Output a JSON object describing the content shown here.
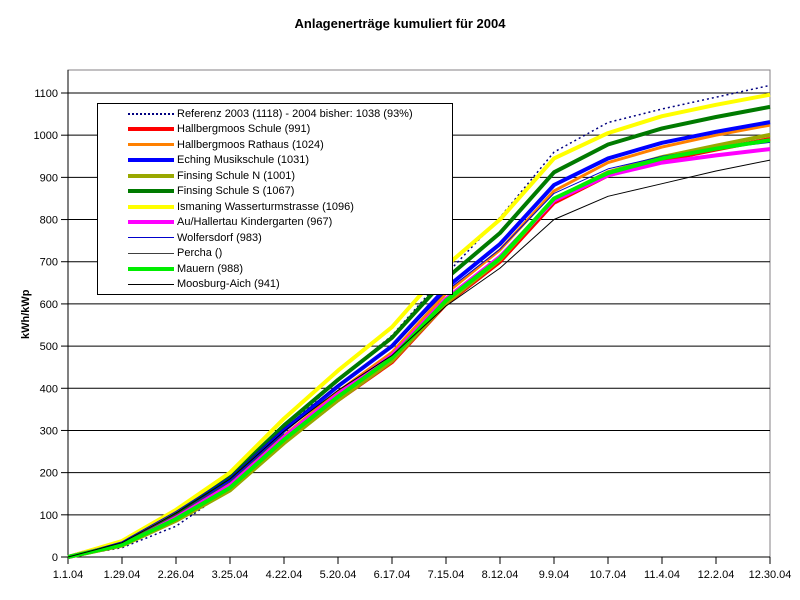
{
  "colors": {
    "background": "#FFFFFF",
    "plot_border": "#848284",
    "axis": "#000000",
    "grid": "#000000"
  },
  "chart_data": {
    "type": "line",
    "title": "Anlagenerträge kumuliert für 2004",
    "xlabel": "",
    "ylabel": "kWh/kWp",
    "ylim": [
      0,
      1150
    ],
    "ytick_step": 100,
    "yticks": [
      0,
      100,
      200,
      300,
      400,
      500,
      600,
      700,
      800,
      900,
      1000,
      1100
    ],
    "grid": "horizontal",
    "legend_position": "top-left-inside",
    "categories": [
      "1.1.04",
      "1.29.04",
      "2.26.04",
      "3.25.04",
      "4.22.04",
      "5.20.04",
      "6.17.04",
      "7.15.04",
      "8.12.04",
      "9.9.04",
      "10.7.04",
      "11.4.04",
      "12.2.04",
      "12.30.04"
    ],
    "series": [
      {
        "name": "Referenz 2003 (1118) - 2004 bisher: 1038 (93%)",
        "color": "#000080",
        "width": 1.5,
        "dash": "2 3",
        "values": [
          0,
          22,
          73,
          162,
          300,
          420,
          525,
          670,
          805,
          960,
          1030,
          1062,
          1090,
          1118
        ]
      },
      {
        "name": "Hallbergmoos Schule (991)",
        "color": "#FF0000",
        "width": 4,
        "dash": null,
        "values": [
          0,
          28,
          88,
          160,
          272,
          372,
          462,
          600,
          700,
          840,
          905,
          940,
          966,
          991
        ]
      },
      {
        "name": "Hallbergmoos Rathaus (1024)",
        "color": "#FF8000",
        "width": 3,
        "dash": null,
        "values": [
          0,
          30,
          95,
          172,
          288,
          392,
          485,
          625,
          728,
          868,
          935,
          972,
          1000,
          1024
        ]
      },
      {
        "name": "Eching Musikschule (1031)",
        "color": "#0000FF",
        "width": 4,
        "dash": null,
        "values": [
          0,
          34,
          102,
          182,
          300,
          405,
          500,
          638,
          742,
          882,
          945,
          982,
          1008,
          1031
        ]
      },
      {
        "name": "Finsing Schule N (1001)",
        "color": "#99A800",
        "width": 4,
        "dash": null,
        "values": [
          0,
          27,
          86,
          158,
          270,
          372,
          465,
          602,
          705,
          848,
          912,
          948,
          975,
          1001
        ]
      },
      {
        "name": "Finsing Schule S (1067)",
        "color": "#007A00",
        "width": 4,
        "dash": null,
        "values": [
          0,
          36,
          106,
          190,
          312,
          420,
          520,
          660,
          768,
          912,
          978,
          1016,
          1043,
          1067
        ]
      },
      {
        "name": "Ismaning Wasserturmstrasse (1096)",
        "color": "#FFFF00",
        "width": 4,
        "dash": null,
        "values": [
          0,
          38,
          112,
          200,
          328,
          442,
          545,
          690,
          800,
          945,
          1005,
          1045,
          1072,
          1096
        ]
      },
      {
        "name": "Au/Hallertau Kindergarten (967)",
        "color": "#FF00FF",
        "width": 4,
        "dash": null,
        "values": [
          0,
          30,
          94,
          170,
          284,
          386,
          478,
          612,
          712,
          845,
          905,
          935,
          952,
          967
        ]
      },
      {
        "name": "Wolfersdorf (983)",
        "color": "#0000CC",
        "width": 1,
        "dash": null,
        "values": [
          0,
          36,
          108,
          190,
          305,
          408,
          498,
          630,
          730,
          862,
          920,
          950,
          968,
          983
        ]
      },
      {
        "name": "Percha ()",
        "color": "#404040",
        "width": 1,
        "dash": null,
        "values": [
          0,
          33,
          100,
          178,
          292,
          null,
          null,
          null,
          null,
          null,
          null,
          null,
          null,
          null
        ]
      },
      {
        "name": "Mauern (988)",
        "color": "#00EE00",
        "width": 4,
        "dash": null,
        "values": [
          0,
          29,
          90,
          164,
          278,
          380,
          472,
          608,
          708,
          850,
          910,
          945,
          968,
          988
        ]
      },
      {
        "name": "Moosburg-Aich (941)",
        "color": "#000000",
        "width": 1,
        "dash": null,
        "values": [
          0,
          34,
          104,
          185,
          298,
          395,
          478,
          595,
          685,
          800,
          855,
          885,
          915,
          941
        ]
      }
    ]
  }
}
